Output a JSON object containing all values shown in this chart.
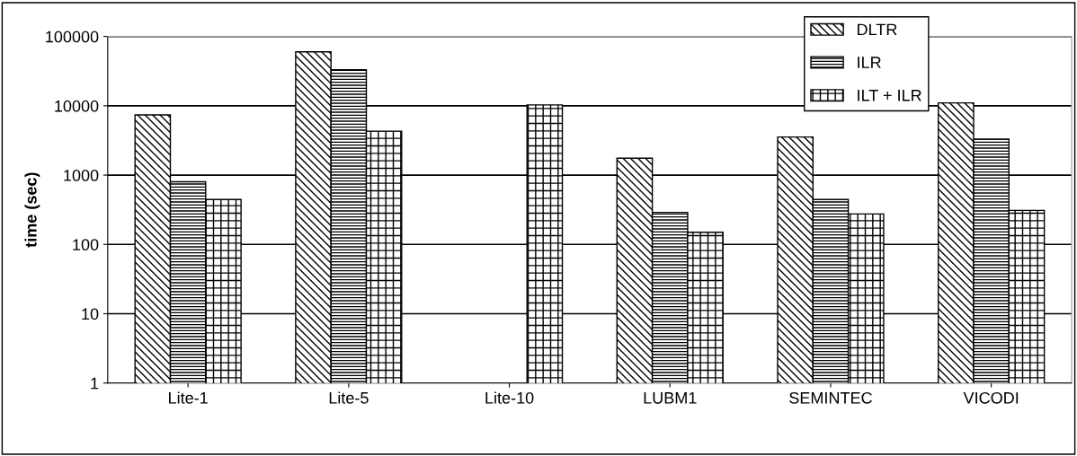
{
  "chart_data": {
    "type": "bar",
    "ylabel": "time (sec)",
    "categories": [
      "Lite-1",
      "Lite-5",
      "Lite-10",
      "LUBM1",
      "SEMINTEC",
      "VICODI"
    ],
    "series": [
      {
        "name": "DLTR",
        "color": "#000000",
        "values": [
          7400,
          60000,
          null,
          1750,
          3550,
          11000
        ]
      },
      {
        "name": "ILR",
        "color": "#000000",
        "values": [
          800,
          33000,
          null,
          290,
          445,
          3300
        ]
      },
      {
        "name": "ILT + ILR",
        "color": "#000000",
        "values": [
          445,
          4300,
          10300,
          150,
          275,
          310
        ]
      }
    ],
    "log": "y",
    "ylim": [
      1,
      100000
    ],
    "yticks": [
      1,
      10,
      100,
      1000,
      10000,
      100000
    ],
    "grid": "y",
    "legend": "top right"
  }
}
